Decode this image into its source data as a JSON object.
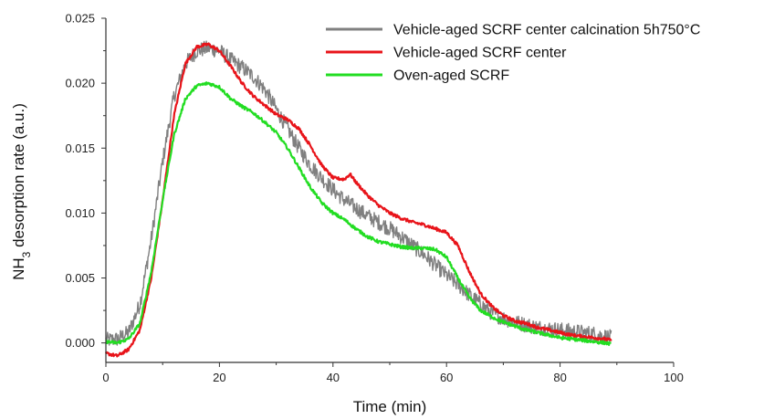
{
  "chart_data": {
    "type": "line",
    "xlabel": "Time (min)",
    "ylabel_main": "NH",
    "ylabel_sub": "3",
    "ylabel_rest": " desorption rate (a.u.)",
    "xlim": [
      0,
      100
    ],
    "ylim": [
      -0.0015,
      0.025
    ],
    "xticks": [
      0,
      20,
      40,
      60,
      80,
      100
    ],
    "yticks": [
      0.0,
      0.005,
      0.01,
      0.015,
      0.02,
      0.025
    ],
    "ytick_labels": [
      "0.000",
      "0.005",
      "0.010",
      "0.015",
      "0.020",
      "0.025"
    ],
    "legend_position": "top-right",
    "series": [
      {
        "name": "Vehicle-aged SCRF center calcination 5h750°C",
        "color": "#808080",
        "noise": 0.0006,
        "x": [
          0,
          2,
          4,
          6,
          8,
          10,
          12,
          14,
          16,
          18,
          20,
          22,
          24,
          26,
          28,
          30,
          32,
          34,
          36,
          38,
          40,
          42,
          44,
          46,
          48,
          50,
          52,
          54,
          56,
          58,
          60,
          62,
          64,
          66,
          68,
          70,
          72,
          74,
          76,
          78,
          80,
          82,
          84,
          86,
          88,
          89
        ],
        "y": [
          0.0002,
          0.0003,
          0.0008,
          0.003,
          0.008,
          0.014,
          0.019,
          0.0215,
          0.0225,
          0.0227,
          0.0225,
          0.0218,
          0.0212,
          0.0205,
          0.0195,
          0.018,
          0.0165,
          0.015,
          0.0137,
          0.0127,
          0.0118,
          0.011,
          0.0104,
          0.0098,
          0.0093,
          0.0088,
          0.0082,
          0.0075,
          0.0068,
          0.006,
          0.0052,
          0.0045,
          0.0037,
          0.003,
          0.0023,
          0.0019,
          0.0016,
          0.0014,
          0.0012,
          0.0011,
          0.001,
          0.0009,
          0.0008,
          0.0007,
          0.0005,
          0.0004
        ]
      },
      {
        "name": "Vehicle-aged SCRF center",
        "color": "#e8141a",
        "noise": 0.00012,
        "x": [
          0,
          2,
          4,
          6,
          8,
          10,
          12,
          14,
          16,
          18,
          20,
          22,
          24,
          26,
          28,
          30,
          32,
          34,
          36,
          38,
          40,
          42,
          43,
          44,
          46,
          48,
          50,
          52,
          54,
          56,
          58,
          60,
          62,
          64,
          66,
          68,
          70,
          72,
          74,
          76,
          78,
          80,
          82,
          84,
          86,
          88,
          89
        ],
        "y": [
          -0.0008,
          -0.001,
          -0.0005,
          0.001,
          0.005,
          0.011,
          0.0175,
          0.0215,
          0.0228,
          0.023,
          0.0225,
          0.0213,
          0.02,
          0.019,
          0.0183,
          0.0176,
          0.0172,
          0.0165,
          0.0152,
          0.0137,
          0.0127,
          0.0126,
          0.013,
          0.0124,
          0.0114,
          0.0106,
          0.01,
          0.0096,
          0.0093,
          0.0091,
          0.0088,
          0.0085,
          0.0075,
          0.0055,
          0.0038,
          0.0028,
          0.0021,
          0.0017,
          0.0015,
          0.0012,
          0.001,
          0.0008,
          0.0006,
          0.0005,
          0.0004,
          0.0003,
          0.0002
        ]
      },
      {
        "name": "Oven-aged SCRF",
        "color": "#22dd22",
        "noise": 0.00012,
        "x": [
          0,
          2,
          4,
          6,
          8,
          10,
          12,
          14,
          16,
          18,
          20,
          22,
          24,
          26,
          28,
          30,
          32,
          34,
          36,
          38,
          40,
          42,
          44,
          46,
          48,
          50,
          52,
          54,
          56,
          58,
          60,
          62,
          64,
          66,
          68,
          70,
          72,
          74,
          76,
          78,
          80,
          82,
          84,
          86,
          88,
          89
        ],
        "y": [
          0.0001,
          0.0,
          0.0003,
          0.0015,
          0.0055,
          0.011,
          0.016,
          0.0188,
          0.0198,
          0.02,
          0.0197,
          0.0188,
          0.0182,
          0.0177,
          0.017,
          0.0162,
          0.015,
          0.0135,
          0.012,
          0.0108,
          0.01,
          0.0095,
          0.0088,
          0.0082,
          0.0078,
          0.0076,
          0.0074,
          0.0073,
          0.0073,
          0.0072,
          0.0066,
          0.005,
          0.0035,
          0.0025,
          0.002,
          0.0016,
          0.0013,
          0.001,
          0.0008,
          0.0006,
          0.0004,
          0.0003,
          0.0002,
          0.0001,
          0.0,
          -0.0001
        ]
      }
    ]
  }
}
